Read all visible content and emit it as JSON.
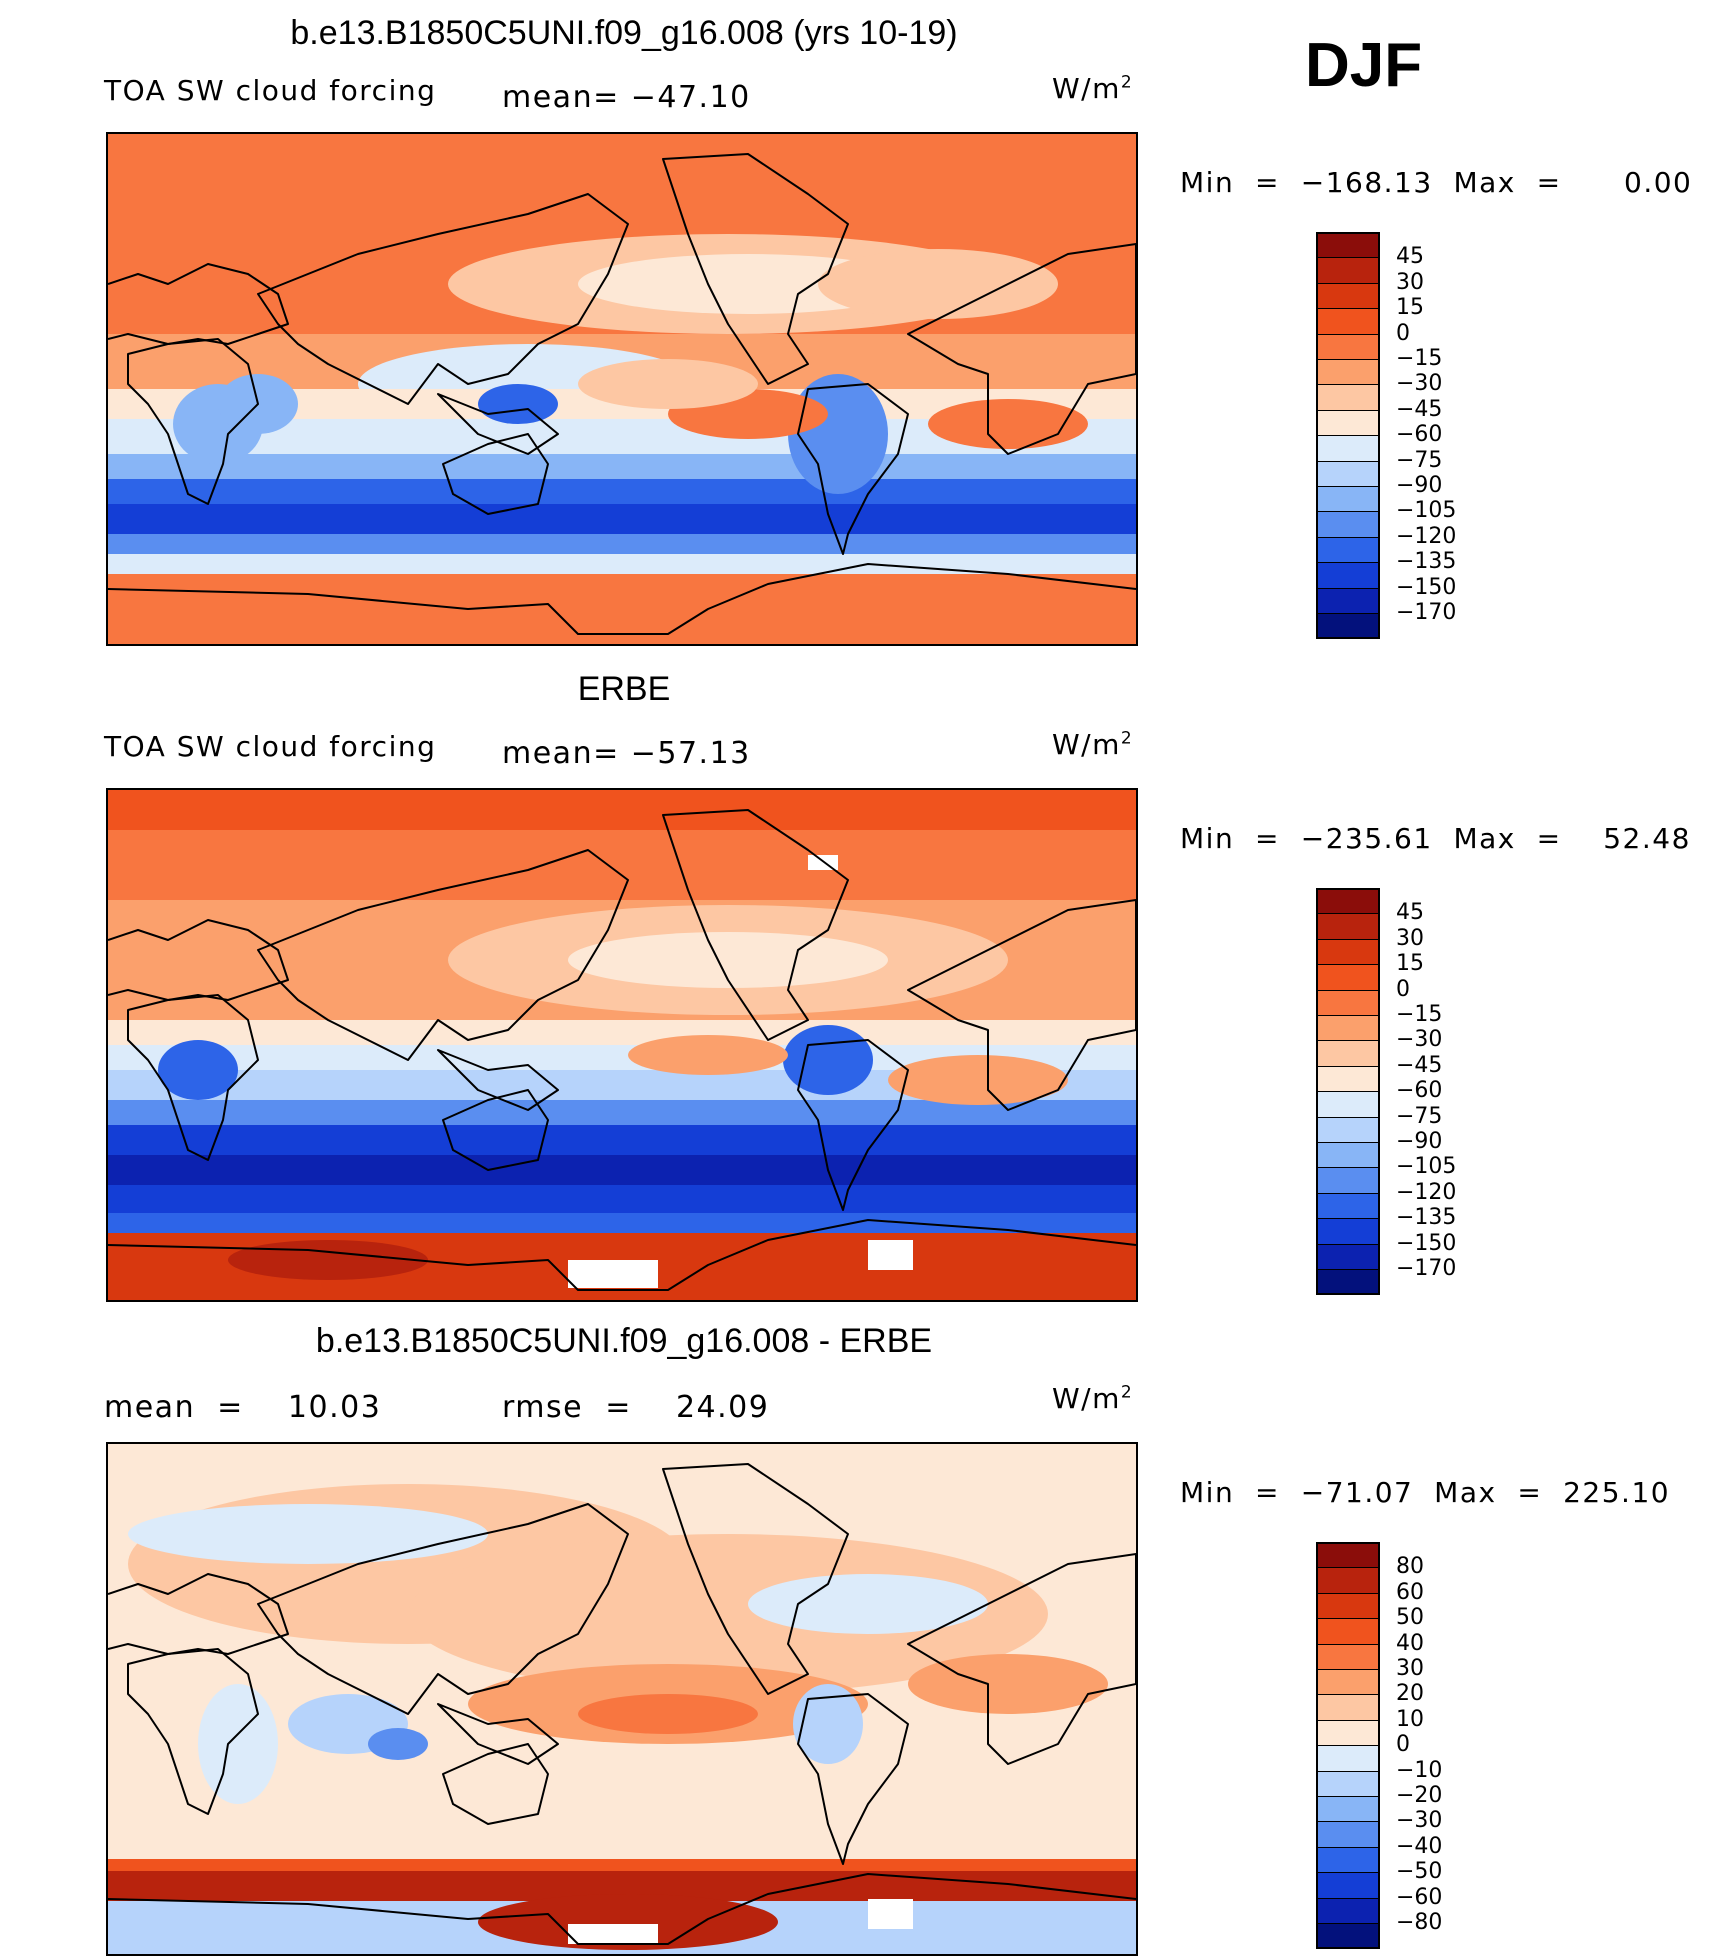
{
  "season": "DJF",
  "panels": [
    {
      "title": "b.e13.B1850C5UNI.f09_g16.008 (yrs 10-19)",
      "left_label": "TOA SW cloud forcing",
      "mean_label": "mean= −47.10",
      "units": "W/m",
      "minmax": "Min  =  −168.13  Max  =      0.00",
      "colorbar": {
        "levels": [
          "45",
          "30",
          "15",
          "0",
          "−15",
          "−30",
          "−45",
          "−60",
          "−75",
          "−90",
          "−105",
          "−120",
          "−135",
          "−150",
          "−170"
        ],
        "colors": [
          "#8b0d0a",
          "#b8230d",
          "#d8380f",
          "#f0531e",
          "#f87640",
          "#fba06c",
          "#fdc7a3",
          "#fde8d6",
          "#dcebfa",
          "#b6d3fb",
          "#88b5f6",
          "#5a8ef0",
          "#2d64e8",
          "#143ed6",
          "#0c22b0",
          "#03117c"
        ]
      },
      "map_style": "model"
    },
    {
      "title": "ERBE",
      "left_label": "TOA SW cloud forcing",
      "mean_label": "mean= −57.13",
      "units": "W/m",
      "minmax": "Min  =  −235.61  Max  =    52.48",
      "colorbar": {
        "levels": [
          "45",
          "30",
          "15",
          "0",
          "−15",
          "−30",
          "−45",
          "−60",
          "−75",
          "−90",
          "−105",
          "−120",
          "−135",
          "−150",
          "−170"
        ],
        "colors": [
          "#8b0d0a",
          "#b8230d",
          "#d8380f",
          "#f0531e",
          "#f87640",
          "#fba06c",
          "#fdc7a3",
          "#fde8d6",
          "#dcebfa",
          "#b6d3fb",
          "#88b5f6",
          "#5a8ef0",
          "#2d64e8",
          "#143ed6",
          "#0c22b0",
          "#03117c"
        ]
      },
      "map_style": "obs"
    },
    {
      "title": "b.e13.B1850C5UNI.f09_g16.008 - ERBE",
      "left_label": "mean  =    10.03",
      "mean_label": "rmse  =    24.09",
      "units": "W/m",
      "minmax": "Min  =  −71.07  Max  =  225.10",
      "colorbar": {
        "levels": [
          "80",
          "60",
          "50",
          "40",
          "30",
          "20",
          "10",
          "0",
          "−10",
          "−20",
          "−30",
          "−40",
          "−50",
          "−60",
          "−80"
        ],
        "colors": [
          "#8b0d0a",
          "#b8230d",
          "#d8380f",
          "#f0531e",
          "#f87640",
          "#fba06c",
          "#fdc7a3",
          "#fde8d6",
          "#dcebfa",
          "#b6d3fb",
          "#88b5f6",
          "#5a8ef0",
          "#2d64e8",
          "#143ed6",
          "#0c22b0",
          "#03117c"
        ]
      },
      "map_style": "diff"
    }
  ]
}
